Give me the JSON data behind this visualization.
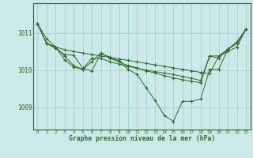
{
  "background_color": "#cce8e8",
  "grid_color": "#9ecece",
  "line_color": "#2d6a2d",
  "marker_color": "#2d6a2d",
  "xlabel": "Graphe pression niveau de la mer (hPa)",
  "xlim": [
    -0.5,
    23.5
  ],
  "ylim": [
    1008.4,
    1011.8
  ],
  "yticks": [
    1009,
    1010,
    1011
  ],
  "xticks": [
    0,
    1,
    2,
    3,
    4,
    5,
    6,
    7,
    8,
    9,
    10,
    11,
    12,
    13,
    14,
    15,
    16,
    17,
    18,
    19,
    20,
    21,
    22,
    23
  ],
  "series": [
    [
      1011.25,
      1010.85,
      1010.62,
      1010.55,
      1010.5,
      1010.46,
      1010.42,
      1010.38,
      1010.34,
      1010.3,
      1010.26,
      1010.22,
      1010.18,
      1010.14,
      1010.1,
      1010.06,
      1010.02,
      1009.98,
      1009.94,
      1009.9,
      1010.38,
      1010.5,
      1010.62,
      1011.1
    ],
    [
      1011.25,
      1010.72,
      1010.58,
      1010.42,
      1010.4,
      1010.05,
      1009.98,
      1010.45,
      1010.35,
      1010.25,
      1010.02,
      1009.88,
      1009.52,
      1009.18,
      1008.78,
      1008.62,
      1009.16,
      1009.16,
      1009.22,
      1010.02,
      1010.02,
      1010.56,
      1010.76,
      1011.1
    ],
    [
      1011.25,
      1010.72,
      1010.62,
      1010.28,
      1010.08,
      1010.02,
      1010.32,
      1010.32,
      1010.22,
      1010.16,
      1010.1,
      1010.05,
      1010.0,
      1009.96,
      1009.92,
      1009.88,
      1009.83,
      1009.78,
      1009.72,
      1010.38,
      1010.32,
      1010.56,
      1010.72,
      1011.1
    ],
    [
      1011.25,
      1010.72,
      1010.62,
      1010.38,
      1010.12,
      1010.02,
      1010.22,
      1010.46,
      1010.32,
      1010.22,
      1010.12,
      1010.06,
      1009.98,
      1009.92,
      1009.85,
      1009.79,
      1009.74,
      1009.7,
      1009.66,
      1010.38,
      1010.38,
      1010.56,
      1010.72,
      1011.1
    ]
  ]
}
